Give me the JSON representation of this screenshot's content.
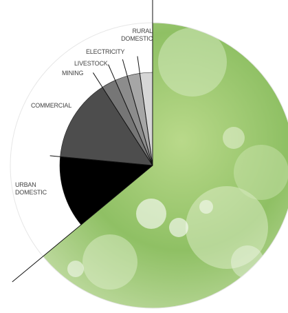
{
  "chart_data": {
    "type": "pie",
    "categories": [
      "URBAN DOMESTIC",
      "COMMERCIAL",
      "MINING",
      "LIVESTOCK",
      "ELECTRICITY",
      "RURAL DOMESTIC"
    ],
    "values": [
      12.5,
      14.4,
      2.5,
      2.2,
      2.2,
      2.2
    ],
    "colors": [
      "#000000",
      "#4d4d4d",
      "#767676",
      "#8c8c8c",
      "#a6a6a6",
      "#d6d6d6"
    ]
  }
}
